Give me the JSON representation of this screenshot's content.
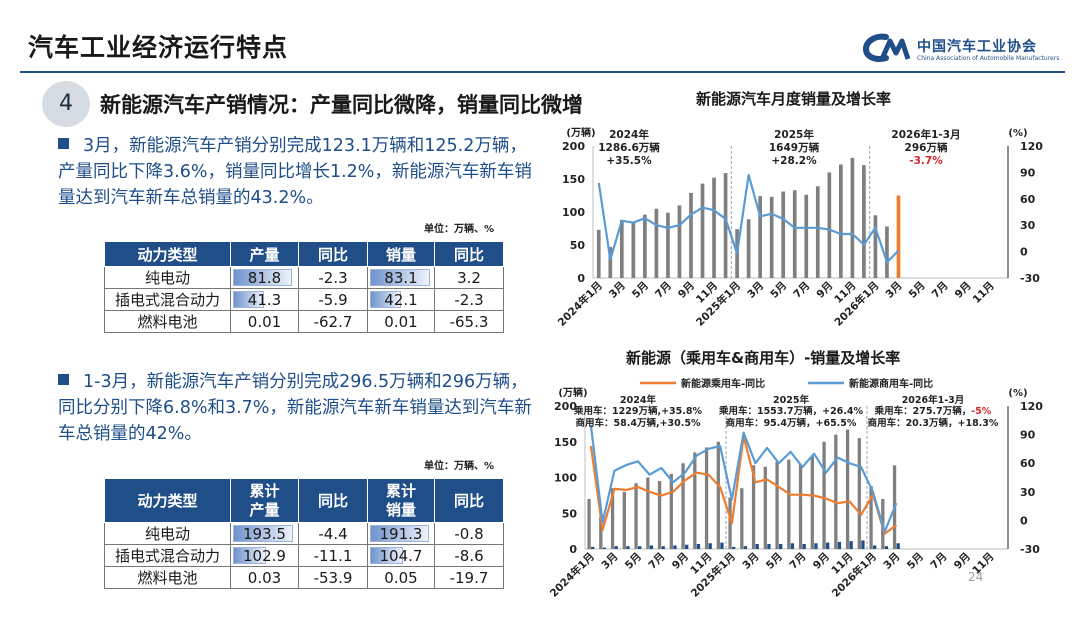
{
  "header": {
    "title": "汽车工业经济运行特点",
    "logo_cn": "中国汽车工业协会",
    "logo_en": "China Association of Automobile Manufacturers"
  },
  "section": {
    "number": "4",
    "title": "新能源汽车产销情况：产量同比微降，销量同比微增"
  },
  "para1": "3月，新能源汽车产销分别完成123.1万辆和125.2万辆，产量同比下降3.6%，销量同比增长1.2%，新能源汽车新车销量达到汽车新车总销量的43.2%。",
  "para2": "1-3月，新能源汽车产销分别完成296.5万辆和296万辆，同比分别下降6.8%和3.7%，新能源汽车新车销量达到汽车新车总销量的42%。",
  "unit_label": "单位：万辆、%",
  "table1": {
    "headers": [
      "动力类型",
      "产量",
      "同比",
      "销量",
      "同比"
    ],
    "rows": [
      {
        "type": "纯电动",
        "prod": "81.8",
        "prod_yoy": "-2.3",
        "sales": "83.1",
        "sales_yoy": "3.2",
        "prod_num": 81.8,
        "sales_num": 83.1
      },
      {
        "type": "插电式混合动力",
        "prod": "41.3",
        "prod_yoy": "-5.9",
        "sales": "42.1",
        "sales_yoy": "-2.3",
        "prod_num": 41.3,
        "sales_num": 42.1
      },
      {
        "type": "燃料电池",
        "prod": "0.01",
        "prod_yoy": "-62.7",
        "sales": "0.01",
        "sales_yoy": "-65.3",
        "prod_num": 0,
        "sales_num": 0
      }
    ]
  },
  "table2": {
    "headers": [
      "动力类型",
      "累计\n产量",
      "同比",
      "累计\n销量",
      "同比"
    ],
    "rows": [
      {
        "type": "纯电动",
        "prod": "193.5",
        "prod_yoy": "-4.4",
        "sales": "191.3",
        "sales_yoy": "-0.8",
        "prod_num": 193.5,
        "sales_num": 191.3
      },
      {
        "type": "插电式混合动力",
        "prod": "102.9",
        "prod_yoy": "-11.1",
        "sales": "104.7",
        "sales_yoy": "-8.6",
        "prod_num": 102.9,
        "sales_num": 104.7
      },
      {
        "type": "燃料电池",
        "prod": "0.03",
        "prod_yoy": "-53.9",
        "sales": "0.05",
        "sales_yoy": "-19.7",
        "prod_num": 0,
        "sales_num": 0
      }
    ]
  },
  "page_number": "24",
  "chart_data": [
    {
      "type": "bar",
      "title": "新能源汽车月度销量及增长率",
      "left_unit": "(万辆)",
      "right_unit": "(%)",
      "ylim": [
        0,
        200
      ],
      "y2lim": [
        -30,
        120
      ],
      "left_ticks": [
        "0",
        "50",
        "100",
        "150",
        "200"
      ],
      "right_ticks": [
        "-30",
        "0",
        "30",
        "60",
        "90",
        "120"
      ],
      "categories": [
        "2024年1月",
        "2",
        "3月",
        "4",
        "5月",
        "6",
        "7月",
        "8",
        "9月",
        "10",
        "11月",
        "12",
        "2025年1月",
        "2",
        "3月",
        "4",
        "5月",
        "6",
        "7月",
        "8",
        "9月",
        "10",
        "11月",
        "12",
        "2026年1月",
        "2",
        "3月",
        "4",
        "5月",
        "6",
        "7月",
        "8",
        "9月",
        "10",
        "11月",
        "12"
      ],
      "x_tick_labels": [
        "2024年1月",
        "3月",
        "5月",
        "7月",
        "9月",
        "11月",
        "2025年1月",
        "3月",
        "5月",
        "7月",
        "9月",
        "11月",
        "2026年1月",
        "3月",
        "5月",
        "7月",
        "9月",
        "11月"
      ],
      "series": [
        {
          "name": "销量",
          "kind": "bar",
          "color": "#7f7f7f",
          "values": [
            73,
            47,
            88,
            85,
            96,
            105,
            99,
            110,
            129,
            143,
            152,
            159,
            74,
            89,
            124,
            123,
            131,
            133,
            126,
            139,
            160,
            172,
            182,
            171,
            95,
            78,
            125,
            null,
            null,
            null,
            null,
            null,
            null,
            null,
            null,
            null
          ]
        },
        {
          "name": "增长率",
          "kind": "line",
          "color": "#5b9bd5",
          "values": [
            78,
            -9,
            35,
            33,
            38,
            30,
            27,
            30,
            42,
            50,
            47,
            37,
            -2,
            87,
            40,
            43,
            37,
            27,
            27,
            27,
            25,
            20,
            20,
            8,
            27,
            -12,
            1,
            null,
            null,
            null,
            null,
            null,
            null,
            null,
            null,
            null
          ]
        }
      ],
      "annotations": [
        {
          "label": "2024年",
          "line2": "1286.6万辆",
          "line3": "+35.5%"
        },
        {
          "label": "2025年",
          "line2": "1649万辆",
          "line3": "+28.2%"
        },
        {
          "label": "2026年1-3月",
          "line2": "296万辆",
          "line3": "-3.7%"
        }
      ]
    },
    {
      "type": "bar",
      "title": "新能源（乘用车&商用车）-销量及增长率",
      "left_unit": "(万辆)",
      "right_unit": "(%)",
      "ylim": [
        0,
        200
      ],
      "y2lim": [
        -30,
        120
      ],
      "left_ticks": [
        "0",
        "50",
        "100",
        "150",
        "200"
      ],
      "right_ticks": [
        "-30",
        "0",
        "30",
        "60",
        "90",
        "120"
      ],
      "categories": [
        "2024年1月",
        "2",
        "3月",
        "4",
        "5月",
        "6",
        "7月",
        "8",
        "9月",
        "10",
        "11月",
        "12",
        "2025年1月",
        "2",
        "3月",
        "4",
        "5月",
        "6",
        "7月",
        "8",
        "9月",
        "10",
        "11月",
        "12",
        "2026年1月",
        "2",
        "3月",
        "4",
        "5月",
        "6",
        "7月",
        "8",
        "9月",
        "10",
        "11月",
        "12"
      ],
      "x_tick_labels": [
        "2024年1月",
        "3月",
        "5月",
        "7月",
        "9月",
        "11月",
        "2025年1月",
        "3月",
        "5月",
        "7月",
        "9月",
        "11月",
        "2026年1月",
        "3月",
        "5月",
        "7月",
        "9月",
        "11月"
      ],
      "legend": [
        "新能源乘用车-同比",
        "新能源商用车-同比"
      ],
      "series": [
        {
          "name": "乘用车销量",
          "kind": "bar",
          "color": "#7f7f7f",
          "values": [
            70,
            45,
            85,
            80,
            92,
            100,
            95,
            105,
            120,
            135,
            142,
            150,
            72,
            85,
            117,
            115,
            122,
            125,
            118,
            130,
            150,
            160,
            167,
            155,
            88,
            70,
            117,
            null,
            null,
            null,
            null,
            null,
            null,
            null,
            null,
            null
          ]
        },
        {
          "name": "商用车销量",
          "kind": "bar",
          "color": "#1f4e89",
          "values": [
            3,
            2,
            4,
            4,
            4,
            5,
            4,
            5,
            6,
            7,
            8,
            9,
            3,
            4,
            7,
            7,
            7,
            8,
            7,
            8,
            9,
            10,
            11,
            12,
            5,
            4,
            8,
            null,
            null,
            null,
            null,
            null,
            null,
            null,
            null,
            null
          ]
        },
        {
          "name": "新能源乘用车-同比",
          "kind": "line",
          "color": "#ed7d31",
          "values": [
            78,
            -10,
            33,
            32,
            35,
            30,
            26,
            30,
            42,
            50,
            48,
            35,
            -3,
            88,
            40,
            43,
            35,
            27,
            27,
            26,
            23,
            18,
            20,
            6,
            27,
            -14,
            -5,
            null,
            null,
            null,
            null,
            null,
            null,
            null,
            null,
            null
          ]
        },
        {
          "name": "新能源商用车-同比",
          "kind": "line",
          "color": "#5b9bd5",
          "values": [
            100,
            -2,
            52,
            58,
            62,
            48,
            55,
            40,
            50,
            68,
            75,
            78,
            22,
            92,
            60,
            76,
            60,
            72,
            56,
            70,
            50,
            66,
            60,
            56,
            30,
            -12,
            18,
            null,
            null,
            null,
            null,
            null,
            null,
            null,
            null,
            null
          ]
        }
      ],
      "annotations": [
        {
          "label": "2024年",
          "line2": "乘用车：1229万辆,+35.8%",
          "line3": "商用车：58.4万辆,+30.5%"
        },
        {
          "label": "2025年",
          "line2": "乘用车：1553.7万辆，+26.4%",
          "line3": "商用车：95.4万辆，+65.5%"
        },
        {
          "label": "2026年1-3月",
          "line2": "乘用车：275.7万辆，-5%",
          "line3": "商用车：20.3万辆，+18.3%"
        }
      ]
    }
  ]
}
